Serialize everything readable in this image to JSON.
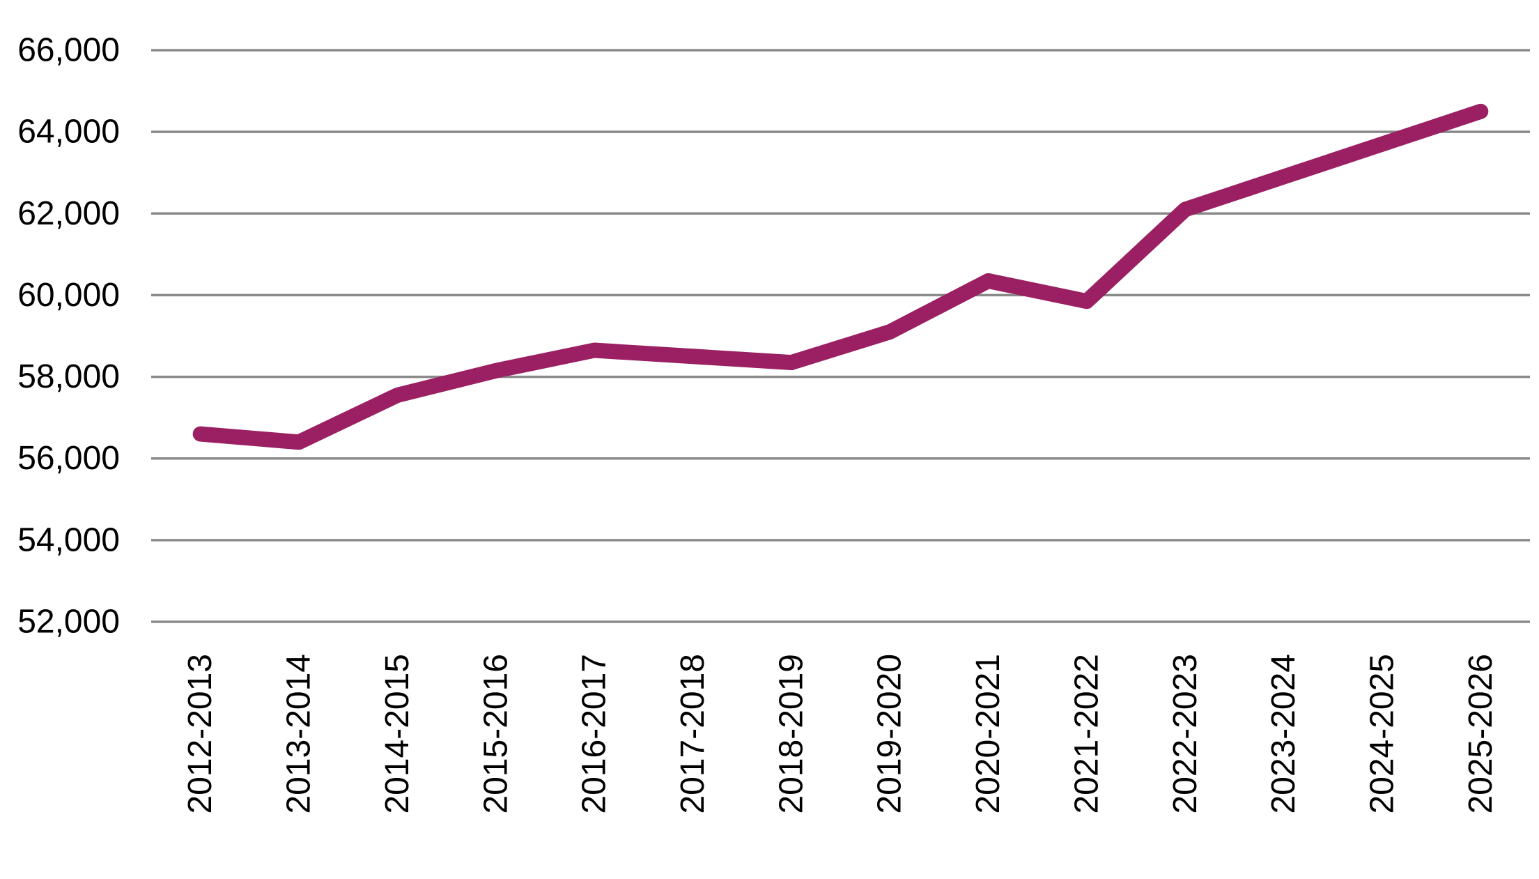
{
  "chart_data": {
    "type": "line",
    "title": "",
    "xlabel": "",
    "ylabel": "",
    "categories": [
      "2012-2013",
      "2013-2014",
      "2014-2015",
      "2015-2016",
      "2016-2017",
      "2017-2018",
      "2018-2019",
      "2019-2020",
      "2020-2021",
      "2021-2022",
      "2022-2023",
      "2023-2024",
      "2024-2025",
      "2025-2026"
    ],
    "series": [
      {
        "name": "enrolment",
        "color": "#9B2063",
        "values": [
          56600,
          56400,
          57550,
          58150,
          58650,
          58500,
          58350,
          59100,
          60350,
          59850,
          62100,
          62900,
          63700,
          64500
        ]
      }
    ],
    "y_axis": {
      "min": 52000,
      "max": 66000,
      "step": 2000,
      "tick_labels_top_to_bottom": [
        "66,000",
        "64,000",
        "62,000",
        "60,000",
        "58,000",
        "56,000",
        "54,000",
        "52,000"
      ]
    },
    "grid": {
      "show": true,
      "color": "#8A8A8A"
    },
    "legend_position": "none",
    "colors": {
      "background": "#FFFFFF",
      "text": "#000000",
      "line": "#9B2063",
      "gridline": "#8A8A8A"
    }
  }
}
